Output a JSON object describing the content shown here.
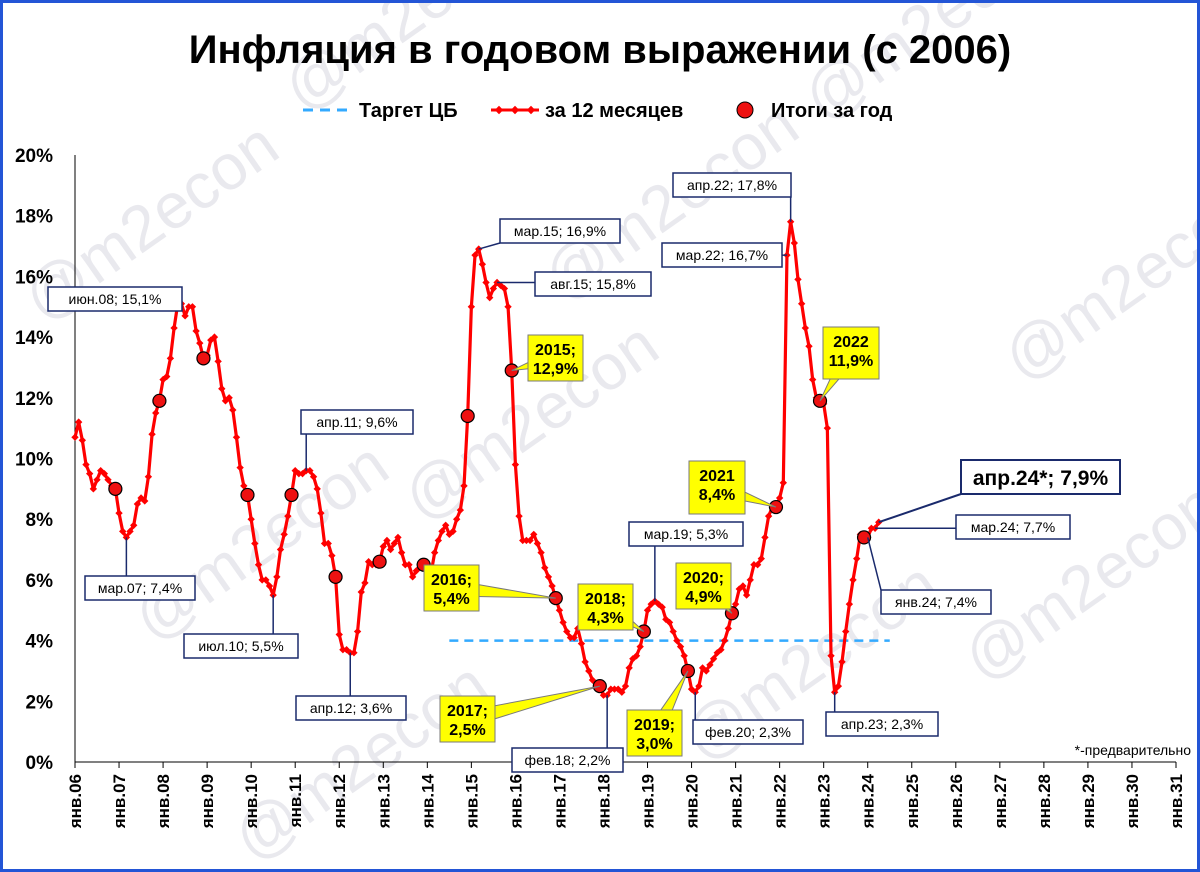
{
  "watermark": "@m2econ",
  "footnote": "*-предварительно",
  "chart_data": {
    "type": "line",
    "title": "Инфляция в годовом выражении (с 2006)",
    "legend": [
      {
        "name": "Таргет ЦБ",
        "color": "#33aaff",
        "style": "dashed"
      },
      {
        "name": "за 12 месяцев",
        "color": "#ff0000",
        "style": "line-with-markers"
      },
      {
        "name": "Итоги за год",
        "color": "#ee1111",
        "style": "dot"
      }
    ],
    "y_ticks": [
      "0%",
      "2%",
      "4%",
      "6%",
      "8%",
      "10%",
      "12%",
      "14%",
      "16%",
      "18%",
      "20%"
    ],
    "ylim": [
      0,
      20
    ],
    "x_ticks": [
      "янв.06",
      "янв.07",
      "янв.08",
      "янв.09",
      "янв.10",
      "янв.11",
      "янв.12",
      "янв.13",
      "янв.14",
      "янв.15",
      "янв.16",
      "янв.17",
      "янв.18",
      "янв.19",
      "янв.20",
      "янв.21",
      "янв.22",
      "янв.23",
      "янв.24",
      "янв.25",
      "янв.26",
      "янв.27",
      "янв.28",
      "янв.29",
      "янв.30",
      "янв.31"
    ],
    "xlim": [
      "2006-01",
      "2031-01"
    ],
    "grid": false,
    "legend_position": "top",
    "series": [
      {
        "name": "за 12 месяцев",
        "points": [
          [
            "2006-01",
            10.7
          ],
          [
            "2006-02",
            11.2
          ],
          [
            "2006-03",
            10.6
          ],
          [
            "2006-04",
            9.8
          ],
          [
            "2006-05",
            9.5
          ],
          [
            "2006-06",
            9.0
          ],
          [
            "2006-07",
            9.3
          ],
          [
            "2006-08",
            9.6
          ],
          [
            "2006-09",
            9.5
          ],
          [
            "2006-10",
            9.3
          ],
          [
            "2006-11",
            9.1
          ],
          [
            "2006-12",
            9.0
          ],
          [
            "2007-01",
            8.2
          ],
          [
            "2007-02",
            7.6
          ],
          [
            "2007-03",
            7.4
          ],
          [
            "2007-04",
            7.6
          ],
          [
            "2007-05",
            7.8
          ],
          [
            "2007-06",
            8.5
          ],
          [
            "2007-07",
            8.7
          ],
          [
            "2007-08",
            8.6
          ],
          [
            "2007-09",
            9.4
          ],
          [
            "2007-10",
            10.8
          ],
          [
            "2007-11",
            11.5
          ],
          [
            "2007-12",
            11.9
          ],
          [
            "2008-01",
            12.6
          ],
          [
            "2008-02",
            12.7
          ],
          [
            "2008-03",
            13.3
          ],
          [
            "2008-04",
            14.3
          ],
          [
            "2008-05",
            15.1
          ],
          [
            "2008-06",
            15.1
          ],
          [
            "2008-07",
            14.7
          ],
          [
            "2008-08",
            15.0
          ],
          [
            "2008-09",
            15.0
          ],
          [
            "2008-10",
            14.2
          ],
          [
            "2008-11",
            13.8
          ],
          [
            "2008-12",
            13.3
          ],
          [
            "2009-01",
            13.4
          ],
          [
            "2009-02",
            13.9
          ],
          [
            "2009-03",
            14.0
          ],
          [
            "2009-04",
            13.2
          ],
          [
            "2009-05",
            12.3
          ],
          [
            "2009-06",
            11.9
          ],
          [
            "2009-07",
            12.0
          ],
          [
            "2009-08",
            11.6
          ],
          [
            "2009-09",
            10.7
          ],
          [
            "2009-10",
            9.7
          ],
          [
            "2009-11",
            9.1
          ],
          [
            "2009-12",
            8.8
          ],
          [
            "2010-01",
            8.0
          ],
          [
            "2010-02",
            7.2
          ],
          [
            "2010-03",
            6.5
          ],
          [
            "2010-04",
            6.0
          ],
          [
            "2010-05",
            6.0
          ],
          [
            "2010-06",
            5.8
          ],
          [
            "2010-07",
            5.5
          ],
          [
            "2010-08",
            6.1
          ],
          [
            "2010-09",
            7.0
          ],
          [
            "2010-10",
            7.5
          ],
          [
            "2010-11",
            8.1
          ],
          [
            "2010-12",
            8.8
          ],
          [
            "2011-01",
            9.6
          ],
          [
            "2011-02",
            9.5
          ],
          [
            "2011-03",
            9.5
          ],
          [
            "2011-04",
            9.6
          ],
          [
            "2011-05",
            9.6
          ],
          [
            "2011-06",
            9.4
          ],
          [
            "2011-07",
            9.0
          ],
          [
            "2011-08",
            8.2
          ],
          [
            "2011-09",
            7.2
          ],
          [
            "2011-10",
            7.2
          ],
          [
            "2011-11",
            6.8
          ],
          [
            "2011-12",
            6.1
          ],
          [
            "2012-01",
            4.2
          ],
          [
            "2012-02",
            3.7
          ],
          [
            "2012-03",
            3.7
          ],
          [
            "2012-04",
            3.6
          ],
          [
            "2012-05",
            3.6
          ],
          [
            "2012-06",
            4.3
          ],
          [
            "2012-07",
            5.6
          ],
          [
            "2012-08",
            5.9
          ],
          [
            "2012-09",
            6.6
          ],
          [
            "2012-10",
            6.5
          ],
          [
            "2012-11",
            6.5
          ],
          [
            "2012-12",
            6.6
          ],
          [
            "2013-01",
            7.1
          ],
          [
            "2013-02",
            7.3
          ],
          [
            "2013-03",
            7.0
          ],
          [
            "2013-04",
            7.2
          ],
          [
            "2013-05",
            7.4
          ],
          [
            "2013-06",
            6.9
          ],
          [
            "2013-07",
            6.5
          ],
          [
            "2013-08",
            6.5
          ],
          [
            "2013-09",
            6.1
          ],
          [
            "2013-10",
            6.3
          ],
          [
            "2013-11",
            6.5
          ],
          [
            "2013-12",
            6.5
          ],
          [
            "2014-01",
            6.1
          ],
          [
            "2014-02",
            6.2
          ],
          [
            "2014-03",
            6.9
          ],
          [
            "2014-04",
            7.3
          ],
          [
            "2014-05",
            7.6
          ],
          [
            "2014-06",
            7.8
          ],
          [
            "2014-07",
            7.5
          ],
          [
            "2014-08",
            7.6
          ],
          [
            "2014-09",
            8.0
          ],
          [
            "2014-10",
            8.3
          ],
          [
            "2014-11",
            9.1
          ],
          [
            "2014-12",
            11.4
          ],
          [
            "2015-01",
            15.0
          ],
          [
            "2015-02",
            16.7
          ],
          [
            "2015-03",
            16.9
          ],
          [
            "2015-04",
            16.4
          ],
          [
            "2015-05",
            15.8
          ],
          [
            "2015-06",
            15.3
          ],
          [
            "2015-07",
            15.6
          ],
          [
            "2015-08",
            15.8
          ],
          [
            "2015-09",
            15.7
          ],
          [
            "2015-10",
            15.6
          ],
          [
            "2015-11",
            15.0
          ],
          [
            "2015-12",
            12.9
          ],
          [
            "2016-01",
            9.8
          ],
          [
            "2016-02",
            8.1
          ],
          [
            "2016-03",
            7.3
          ],
          [
            "2016-04",
            7.3
          ],
          [
            "2016-05",
            7.3
          ],
          [
            "2016-06",
            7.5
          ],
          [
            "2016-07",
            7.2
          ],
          [
            "2016-08",
            6.9
          ],
          [
            "2016-09",
            6.4
          ],
          [
            "2016-10",
            6.1
          ],
          [
            "2016-11",
            5.8
          ],
          [
            "2016-12",
            5.4
          ],
          [
            "2017-01",
            5.0
          ],
          [
            "2017-02",
            4.6
          ],
          [
            "2017-03",
            4.3
          ],
          [
            "2017-04",
            4.1
          ],
          [
            "2017-05",
            4.1
          ],
          [
            "2017-06",
            4.4
          ],
          [
            "2017-07",
            3.9
          ],
          [
            "2017-08",
            3.3
          ],
          [
            "2017-09",
            3.0
          ],
          [
            "2017-10",
            2.7
          ],
          [
            "2017-11",
            2.5
          ],
          [
            "2017-12",
            2.5
          ],
          [
            "2018-01",
            2.2
          ],
          [
            "2018-02",
            2.2
          ],
          [
            "2018-03",
            2.4
          ],
          [
            "2018-04",
            2.4
          ],
          [
            "2018-05",
            2.4
          ],
          [
            "2018-06",
            2.3
          ],
          [
            "2018-07",
            2.5
          ],
          [
            "2018-08",
            3.1
          ],
          [
            "2018-09",
            3.4
          ],
          [
            "2018-10",
            3.5
          ],
          [
            "2018-11",
            3.8
          ],
          [
            "2018-12",
            4.3
          ],
          [
            "2019-01",
            5.0
          ],
          [
            "2019-02",
            5.2
          ],
          [
            "2019-03",
            5.3
          ],
          [
            "2019-04",
            5.2
          ],
          [
            "2019-05",
            5.1
          ],
          [
            "2019-06",
            4.7
          ],
          [
            "2019-07",
            4.6
          ],
          [
            "2019-08",
            4.3
          ],
          [
            "2019-09",
            4.0
          ],
          [
            "2019-10",
            3.8
          ],
          [
            "2019-11",
            3.5
          ],
          [
            "2019-12",
            3.0
          ],
          [
            "2020-01",
            2.4
          ],
          [
            "2020-02",
            2.3
          ],
          [
            "2020-03",
            2.5
          ],
          [
            "2020-04",
            3.1
          ],
          [
            "2020-05",
            3.0
          ],
          [
            "2020-06",
            3.2
          ],
          [
            "2020-07",
            3.4
          ],
          [
            "2020-08",
            3.6
          ],
          [
            "2020-09",
            3.7
          ],
          [
            "2020-10",
            4.0
          ],
          [
            "2020-11",
            4.4
          ],
          [
            "2020-12",
            4.9
          ],
          [
            "2021-01",
            5.2
          ],
          [
            "2021-02",
            5.7
          ],
          [
            "2021-03",
            5.8
          ],
          [
            "2021-04",
            5.5
          ],
          [
            "2021-05",
            6.0
          ],
          [
            "2021-06",
            6.5
          ],
          [
            "2021-07",
            6.5
          ],
          [
            "2021-08",
            6.7
          ],
          [
            "2021-09",
            7.4
          ],
          [
            "2021-10",
            8.1
          ],
          [
            "2021-11",
            8.4
          ],
          [
            "2021-12",
            8.4
          ],
          [
            "2022-01",
            8.7
          ],
          [
            "2022-02",
            9.2
          ],
          [
            "2022-03",
            16.7
          ],
          [
            "2022-04",
            17.8
          ],
          [
            "2022-05",
            17.1
          ],
          [
            "2022-06",
            15.9
          ],
          [
            "2022-07",
            15.1
          ],
          [
            "2022-08",
            14.3
          ],
          [
            "2022-09",
            13.7
          ],
          [
            "2022-10",
            12.6
          ],
          [
            "2022-11",
            12.0
          ],
          [
            "2022-12",
            11.9
          ],
          [
            "2023-01",
            11.8
          ],
          [
            "2023-02",
            11.0
          ],
          [
            "2023-03",
            3.5
          ],
          [
            "2023-04",
            2.3
          ],
          [
            "2023-05",
            2.5
          ],
          [
            "2023-06",
            3.3
          ],
          [
            "2023-07",
            4.3
          ],
          [
            "2023-08",
            5.2
          ],
          [
            "2023-09",
            6.0
          ],
          [
            "2023-10",
            6.7
          ],
          [
            "2023-11",
            7.5
          ],
          [
            "2023-12",
            7.4
          ],
          [
            "2024-01",
            7.4
          ],
          [
            "2024-02",
            7.7
          ],
          [
            "2024-03",
            7.7
          ],
          [
            "2024-04",
            7.9
          ]
        ]
      },
      {
        "name": "Итоги за год",
        "points": [
          [
            "2006-12",
            9.0
          ],
          [
            "2007-12",
            11.9
          ],
          [
            "2008-12",
            13.3
          ],
          [
            "2009-12",
            8.8
          ],
          [
            "2010-12",
            8.8
          ],
          [
            "2011-12",
            6.1
          ],
          [
            "2012-12",
            6.6
          ],
          [
            "2013-12",
            6.5
          ],
          [
            "2014-12",
            11.4
          ],
          [
            "2015-12",
            12.9
          ],
          [
            "2016-12",
            5.4
          ],
          [
            "2017-12",
            2.5
          ],
          [
            "2018-12",
            4.3
          ],
          [
            "2019-12",
            3.0
          ],
          [
            "2020-12",
            4.9
          ],
          [
            "2021-12",
            8.4
          ],
          [
            "2022-12",
            11.9
          ],
          [
            "2023-12",
            7.4
          ]
        ]
      },
      {
        "name": "Таргет ЦБ",
        "points": [
          [
            "2014-07",
            4.0
          ],
          [
            "2024-07",
            4.0
          ]
        ]
      }
    ],
    "annotations": [
      {
        "text": "июн.08; 15,1%",
        "x": "2008-06",
        "y": 15.1,
        "style": "box"
      },
      {
        "text": "мар.07; 7,4%",
        "x": "2007-03",
        "y": 7.4,
        "style": "box"
      },
      {
        "text": "апр.11; 9,6%",
        "x": "2011-04",
        "y": 9.6,
        "style": "box"
      },
      {
        "text": "июл.10; 5,5%",
        "x": "2010-07",
        "y": 5.5,
        "style": "box"
      },
      {
        "text": "апр.12; 3,6%",
        "x": "2012-04",
        "y": 3.6,
        "style": "box"
      },
      {
        "text": "мар.15; 16,9%",
        "x": "2015-03",
        "y": 16.9,
        "style": "box"
      },
      {
        "text": "авг.15; 15,8%",
        "x": "2015-08",
        "y": 15.8,
        "style": "box"
      },
      {
        "text": "фев.18; 2,2%",
        "x": "2018-02",
        "y": 2.2,
        "style": "box"
      },
      {
        "text": "мар.19; 5,3%",
        "x": "2019-03",
        "y": 5.3,
        "style": "box"
      },
      {
        "text": "фев.20; 2,3%",
        "x": "2020-02",
        "y": 2.3,
        "style": "box"
      },
      {
        "text": "апр.22; 17,8%",
        "x": "2022-04",
        "y": 17.8,
        "style": "box"
      },
      {
        "text": "мар.22; 16,7%",
        "x": "2022-03",
        "y": 16.7,
        "style": "box"
      },
      {
        "text": "апр.23; 2,3%",
        "x": "2023-04",
        "y": 2.3,
        "style": "box"
      },
      {
        "text": "янв.24; 7,4%",
        "x": "2024-01",
        "y": 7.4,
        "style": "box"
      },
      {
        "text": "мар.24; 7,7%",
        "x": "2024-03",
        "y": 7.7,
        "style": "box"
      },
      {
        "text": "апр.24*; 7,9%",
        "x": "2024-04",
        "y": 7.9,
        "style": "box-large"
      },
      {
        "lines": [
          "2015;",
          "12,9%"
        ],
        "x": "2015-12",
        "y": 12.9,
        "style": "year"
      },
      {
        "lines": [
          "2016;",
          "5,4%"
        ],
        "x": "2016-12",
        "y": 5.4,
        "style": "year"
      },
      {
        "lines": [
          "2017;",
          "2,5%"
        ],
        "x": "2017-12",
        "y": 2.5,
        "style": "year"
      },
      {
        "lines": [
          "2018;",
          "4,3%"
        ],
        "x": "2018-12",
        "y": 4.3,
        "style": "year"
      },
      {
        "lines": [
          "2019;",
          "3,0%"
        ],
        "x": "2019-12",
        "y": 3.0,
        "style": "year"
      },
      {
        "lines": [
          "2020;",
          "4,9%"
        ],
        "x": "2020-12",
        "y": 4.9,
        "style": "year"
      },
      {
        "lines": [
          "2021",
          "8,4%"
        ],
        "x": "2021-12",
        "y": 8.4,
        "style": "year"
      },
      {
        "lines": [
          "2022",
          "11,9%"
        ],
        "x": "2022-12",
        "y": 11.9,
        "style": "year"
      }
    ]
  }
}
